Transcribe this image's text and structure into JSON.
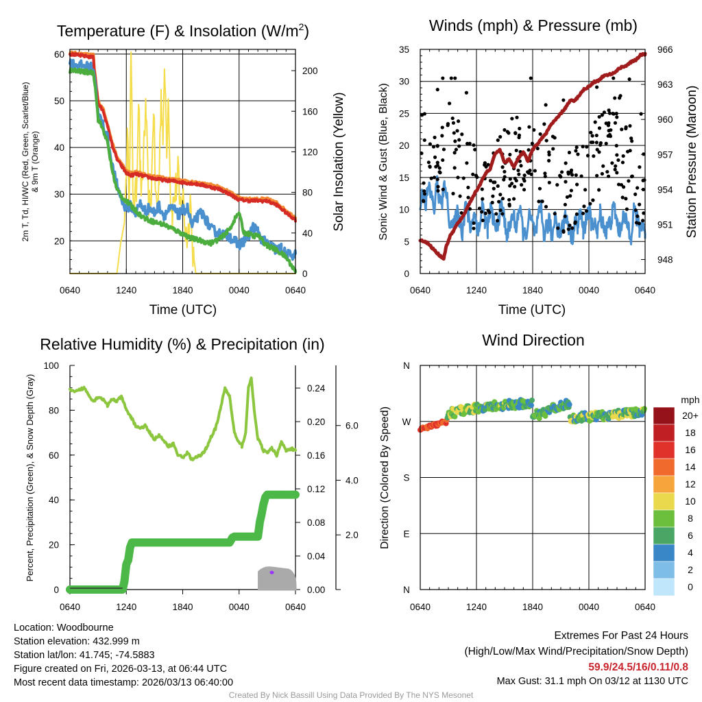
{
  "footer": {
    "location": "Location: Woodbourne",
    "elevation": "Station elevation: 432.999 m",
    "latlon": "Station lat/lon: 41.745; -74.5883",
    "created": "Figure created on Fri, 2026-03-13, at 06:44 UTC",
    "recent": "Most recent data timestamp: 2026/03/13 06:40:00",
    "extremes_title": "Extremes For Past 24 Hours",
    "extremes_legend": "(High/Low/Max Wind/Precipitation/Snow Depth)",
    "extremes_values": "59.9/24.5/16/0.11/0.8",
    "max_gust": "Max Gust: 31.1 mph On 03/12 at 1130 UTC",
    "credit": "Created By Nick Bassill Using Data Provided By The NYS Mesonet"
  },
  "colors": {
    "red": "#d62b25",
    "orange": "#f28a33",
    "green": "#4cad3f",
    "blue": "#4a90cf",
    "yellow": "#f5dc4a",
    "maroon": "#a01b1b",
    "rh_green": "#8cc63f",
    "precip_green": "#4cb848",
    "snow_gray": "#aaaaaa",
    "snow_purple": "#9933ff"
  },
  "chart_data": [
    {
      "type": "line",
      "title": "Temperature (F) & Insolation (W/m2)",
      "title_main": "Temperature (F) & Insolation (W/m",
      "title_sup": "2",
      "title_end": ")",
      "xlabel": "Time (UTC)",
      "ylabel_line1": "2m T, Td, HI/WC (Red, Green, Scarlet/Blue)",
      "ylabel_line2": "& 9m T (Orange)",
      "ylabel_right": "Solar Insolation (Yellow)",
      "x_ticks": [
        "0640",
        "1240",
        "1840",
        "0040",
        "0640"
      ],
      "x_range": [
        0,
        24
      ],
      "ylim": [
        13,
        61
      ],
      "y_ticks": [
        20,
        30,
        40,
        50,
        60
      ],
      "ylim_right": [
        0,
        221
      ],
      "y_ticks_right": [
        0,
        40,
        80,
        120,
        160,
        200
      ],
      "series": [
        {
          "name": "9m T",
          "color": "orange",
          "x": [
            0,
            2.5,
            2.6,
            3,
            3.3,
            3.6,
            4,
            4.5,
            5,
            5.5,
            6,
            6.5,
            7,
            8,
            9,
            10,
            11,
            12,
            13,
            14,
            15,
            16,
            17,
            18,
            19,
            20,
            21,
            22,
            23,
            24
          ],
          "values": [
            60.3,
            59.8,
            57,
            50,
            49,
            48,
            45,
            41,
            38,
            36.5,
            35,
            34.5,
            34.8,
            34.2,
            33.8,
            33.5,
            33.2,
            33,
            32.6,
            32.3,
            32,
            31.5,
            30.5,
            29.3,
            29,
            29,
            29,
            28.2,
            26.5,
            25
          ]
        },
        {
          "name": "2m T",
          "color": "red",
          "x": [
            0,
            2.5,
            2.6,
            3,
            3.3,
            3.6,
            4,
            4.5,
            5,
            5.5,
            6,
            6.5,
            7,
            8,
            9,
            10,
            11,
            12,
            13,
            14,
            15,
            16,
            17,
            18,
            19,
            20,
            21,
            22,
            23,
            24
          ],
          "values": [
            60,
            59.3,
            56.5,
            49.5,
            48.5,
            47.5,
            44.5,
            40.5,
            37.5,
            36,
            34.5,
            34,
            34.3,
            33.8,
            33.3,
            33,
            32.8,
            32.5,
            32.3,
            32,
            31.5,
            31,
            30,
            28.8,
            28.6,
            28.6,
            28.5,
            27.7,
            26,
            24.5
          ]
        },
        {
          "name": "HI/WC",
          "color": "blue",
          "x": [
            0,
            2.5,
            2.7,
            3,
            3.5,
            4,
            4.5,
            5,
            5.3,
            5.7,
            6,
            6.5,
            7,
            7.5,
            8,
            8.5,
            9,
            9.5,
            10,
            10.5,
            11,
            11.5,
            12,
            12.5,
            13,
            13.5,
            14,
            14.5,
            15,
            16,
            17,
            17.5,
            18,
            19,
            19.5,
            20,
            20.5,
            21,
            22,
            22.5,
            23,
            24
          ],
          "values": [
            58,
            57,
            54,
            47,
            45,
            42,
            36,
            32,
            30,
            28,
            27,
            27.5,
            26,
            28,
            26.5,
            27,
            26,
            27.5,
            25.5,
            26.5,
            27,
            25.5,
            26.5,
            27,
            23,
            25,
            26,
            24.5,
            22.5,
            21.5,
            21,
            20,
            19,
            21,
            23,
            22,
            20,
            19.5,
            18,
            18.5,
            17,
            17
          ]
        },
        {
          "name": "Td",
          "color": "green",
          "x": [
            0,
            2.5,
            2.7,
            3,
            3.5,
            4,
            4.5,
            5,
            5.5,
            6,
            6.5,
            7,
            7.5,
            8,
            9,
            10,
            11,
            12,
            13,
            14,
            15,
            16,
            17,
            17.5,
            18,
            18.5,
            19,
            19.5,
            20,
            20.5,
            21,
            22,
            23,
            24
          ],
          "values": [
            56.5,
            56,
            53,
            46,
            44,
            41,
            35,
            31,
            29.5,
            28.5,
            27.5,
            26.5,
            25.5,
            24.8,
            24,
            23.5,
            22.5,
            21.5,
            20.5,
            20,
            19.5,
            20.5,
            22.5,
            24.5,
            26,
            21.8,
            21.5,
            21,
            21.2,
            20,
            19,
            18,
            16.5,
            13.5
          ]
        }
      ],
      "insolation": {
        "name": "Solar Insolation",
        "color": "yellow",
        "x": [
          0,
          5,
          5.4,
          5.8,
          6.1,
          6.3,
          6.5,
          6.7,
          6.9,
          7.1,
          7.3,
          7.5,
          7.7,
          7.9,
          8.1,
          8.3,
          8.5,
          8.7,
          8.9,
          9.1,
          9.3,
          9.5,
          9.7,
          9.9,
          10.1,
          10.3,
          10.5,
          10.7,
          10.9,
          11.1,
          11.3,
          11.5,
          11.7,
          11.9,
          12.1,
          12.3,
          12.6,
          12.8,
          13,
          13.2,
          13.4,
          14,
          24
        ],
        "values": [
          0,
          0,
          30,
          50,
          130,
          85,
          215,
          85,
          65,
          90,
          180,
          95,
          75,
          140,
          160,
          85,
          60,
          90,
          170,
          80,
          60,
          95,
          180,
          140,
          195,
          130,
          180,
          80,
          60,
          75,
          85,
          100,
          60,
          80,
          70,
          40,
          40,
          80,
          30,
          15,
          0,
          0,
          0
        ]
      }
    },
    {
      "type": "line",
      "title": "Winds (mph) & Pressure (mb)",
      "xlabel": "Time (UTC)",
      "ylabel": "Sonic Wind & Gust (Blue, Black)",
      "ylabel_right": "Station Pressure (Maroon)",
      "x_ticks": [
        "0640",
        "1240",
        "1840",
        "0040",
        "0640"
      ],
      "x_range": [
        0,
        24
      ],
      "ylim": [
        0,
        35
      ],
      "y_ticks": [
        0,
        5,
        10,
        15,
        20,
        25,
        30,
        35
      ],
      "ylim_right": [
        946.8,
        966
      ],
      "y_ticks_right": [
        948,
        951,
        954,
        957,
        960,
        963,
        966
      ],
      "pressure": {
        "name": "Station Pressure",
        "color": "maroon",
        "x": [
          0,
          0.8,
          1.5,
          2,
          2.5,
          2.8,
          3.2,
          3.5,
          4,
          4.5,
          5,
          5.5,
          6,
          6.5,
          7,
          7.5,
          8,
          8.5,
          9,
          9.5,
          10,
          10.5,
          11,
          11.5,
          12,
          12.5,
          13,
          13.5,
          14,
          14.5,
          15,
          15.5,
          16,
          16.5,
          17,
          17.5,
          18,
          18.5,
          19,
          19.5,
          20,
          20.5,
          21,
          21.5,
          22,
          22.5,
          23,
          23.5,
          24
        ],
        "values": [
          949.7,
          949.4,
          948.8,
          948.4,
          948.1,
          949.2,
          950,
          950.4,
          951.1,
          951.6,
          952.4,
          953.2,
          953.9,
          954.6,
          955.4,
          955.8,
          957.1,
          957.4,
          956.3,
          956.6,
          955.9,
          956.7,
          957.2,
          956.4,
          957.4,
          957.9,
          958.4,
          958.9,
          959.6,
          960,
          960.5,
          961,
          961.6,
          961.6,
          962.1,
          962.6,
          962.8,
          963.2,
          963.3,
          963.7,
          963.8,
          963.9,
          964.2,
          964.5,
          964.6,
          964.9,
          965.1,
          965.5,
          965.6
        ]
      },
      "sonic_wind": {
        "name": "Sonic Wind",
        "color": "blue",
        "x": [
          0,
          0.3,
          0.6,
          0.9,
          1.2,
          1.5,
          1.8,
          2.1,
          2.4,
          2.7,
          3,
          3.3,
          3.6,
          3.9,
          4.2,
          4.5,
          4.8,
          5.1,
          5.4,
          5.7,
          6,
          6.3,
          6.6,
          6.9,
          7.2,
          7.5,
          7.8,
          8.1,
          8.4,
          8.7,
          9,
          9.3,
          9.6,
          9.9,
          10.2,
          10.5,
          10.8,
          11.1,
          11.4,
          11.7,
          12,
          12.3,
          12.6,
          12.9,
          13.2,
          13.5,
          13.8,
          14.1,
          14.4,
          14.7,
          15,
          15.3,
          15.6,
          15.9,
          16.2,
          16.5,
          16.8,
          17.1,
          17.4,
          17.7,
          18,
          18.3,
          18.6,
          18.9,
          19.2,
          19.5,
          19.8,
          20.1,
          20.4,
          20.7,
          21,
          21.3,
          21.6,
          21.9,
          22.2,
          22.5,
          22.8,
          23.1,
          23.4,
          23.7,
          24
        ],
        "values": [
          10.5,
          13,
          11,
          13.5,
          12,
          10,
          14.5,
          11,
          11.5,
          14.5,
          9,
          8,
          7,
          9.5,
          8.5,
          6.5,
          10.5,
          9,
          7,
          9.5,
          8,
          6.5,
          11,
          8.5,
          7,
          10,
          8.5,
          6.5,
          9,
          11,
          8,
          6,
          7.5,
          9.5,
          7,
          10,
          8.5,
          5.5,
          7,
          9,
          7.5,
          6,
          8.5,
          10,
          6,
          7.5,
          8,
          5.5,
          9.5,
          7,
          6.5,
          8,
          9,
          7,
          5.5,
          8,
          7.5,
          9.5,
          6.5,
          8.5,
          10,
          7,
          8.5,
          6,
          9.5,
          8,
          6.5,
          7.5,
          8.5,
          10.5,
          8,
          6.5,
          9,
          8,
          7.5,
          6,
          10,
          8.5,
          7,
          8,
          6.5
        ]
      },
      "gust_points": {
        "name": "Gust",
        "color": "black",
        "n": 300,
        "count_note": "black dots 5-31 mph",
        "max": 31.1
      }
    },
    {
      "type": "line",
      "title": "Relative Humidity (%) & Precipitation (in)",
      "ylabel": "Percent, Precipitation (Green), & Snow Depth (Gray)",
      "x_ticks": [
        "0640",
        "1240",
        "1840",
        "0040",
        "0640"
      ],
      "x_range": [
        0,
        24
      ],
      "ylim": [
        0,
        100
      ],
      "y_ticks": [
        0,
        20,
        40,
        60,
        80,
        100
      ],
      "precip_ticks": [
        "0.00",
        "0.04",
        "0.08",
        "0.12",
        "0.16",
        "0.20",
        "0.24"
      ],
      "precip_range": [
        0,
        0.267
      ],
      "snow_ticks": [
        "2.0",
        "4.0",
        "6.0"
      ],
      "snow_range": [
        0,
        8.2
      ],
      "rh": {
        "name": "Relative Humidity",
        "color": "rh_green",
        "x": [
          0,
          0.5,
          1,
          1.5,
          2,
          2.5,
          3,
          3.5,
          4,
          4.5,
          5,
          5.5,
          6,
          6.5,
          7,
          7.5,
          8,
          8.5,
          9,
          9.5,
          10,
          10.5,
          11,
          11.5,
          12,
          12.5,
          13,
          13.5,
          14,
          14.5,
          15,
          15.5,
          16,
          16.5,
          17,
          17.5,
          17.9,
          18.3,
          18.7,
          19,
          19.3,
          19.6,
          20,
          20.3,
          20.6,
          21,
          21.5,
          22,
          22.5,
          23,
          23.5,
          24
        ],
        "values": [
          89,
          88,
          89,
          90,
          87,
          84,
          86,
          85,
          82,
          85,
          84,
          86,
          80,
          77,
          73,
          72,
          73,
          70,
          67,
          69,
          66,
          64,
          65,
          60,
          59,
          61,
          58,
          59,
          60,
          63,
          68,
          72,
          80,
          90,
          86,
          70,
          66,
          64,
          70,
          90,
          95,
          80,
          67,
          65,
          62,
          61,
          63,
          60,
          66,
          62,
          63,
          62
        ]
      },
      "precip": {
        "name": "Precipitation",
        "color": "precip_green",
        "x": [
          0,
          5.6,
          5.8,
          6,
          6.2,
          6.4,
          6.6,
          11,
          17,
          17.3,
          17.5,
          20,
          20.2,
          20.4,
          20.6,
          20.8,
          21,
          24
        ],
        "values": [
          0,
          0,
          0.01,
          0.03,
          0.035,
          0.05,
          0.056,
          0.056,
          0.056,
          0.062,
          0.063,
          0.063,
          0.08,
          0.09,
          0.102,
          0.11,
          0.113,
          0.113
        ]
      },
      "snow_depth": {
        "name": "Snow Depth",
        "color": "snow_gray",
        "x_start": 20.1,
        "x_end": 24,
        "value": 0.8
      }
    },
    {
      "type": "scatter",
      "title": "Wind Direction",
      "ylabel": "Direction (Colored By Speed)",
      "x_ticks": [
        "0640",
        "1240",
        "1840",
        "0040",
        "0640"
      ],
      "x_range": [
        0,
        24
      ],
      "ylim": [
        0,
        360
      ],
      "y_ticks": [
        "N",
        "E",
        "S",
        "W",
        "N"
      ],
      "colorbar_title": "mph",
      "colorbar_labels": [
        "0",
        "2",
        "4",
        "6",
        "8",
        "10",
        "12",
        "14",
        "16",
        "18",
        "20+"
      ],
      "colorbar_colors": [
        "#bfe6fa",
        "#7ebde6",
        "#3a87c7",
        "#4aa664",
        "#6cbf3c",
        "#ead94c",
        "#f6a53c",
        "#f0692d",
        "#e0322a",
        "#c01f24",
        "#96121a"
      ],
      "segments": [
        {
          "x0": 0,
          "x1": 2.9,
          "dir0": 257,
          "dir1": 270,
          "spd0": 13,
          "spd1": 17
        },
        {
          "x0": 2.9,
          "x1": 6,
          "dir0": 282,
          "dir1": 292,
          "spd0": 5,
          "spd1": 11
        },
        {
          "x0": 6,
          "x1": 12,
          "dir0": 292,
          "dir1": 300,
          "spd0": 3,
          "spd1": 10
        },
        {
          "x0": 12,
          "x1": 16,
          "dir0": 278,
          "dir1": 300,
          "spd0": 3,
          "spd1": 9
        },
        {
          "x0": 16,
          "x1": 24,
          "dir0": 275,
          "dir1": 285,
          "spd0": 4,
          "spd1": 10
        }
      ]
    }
  ]
}
